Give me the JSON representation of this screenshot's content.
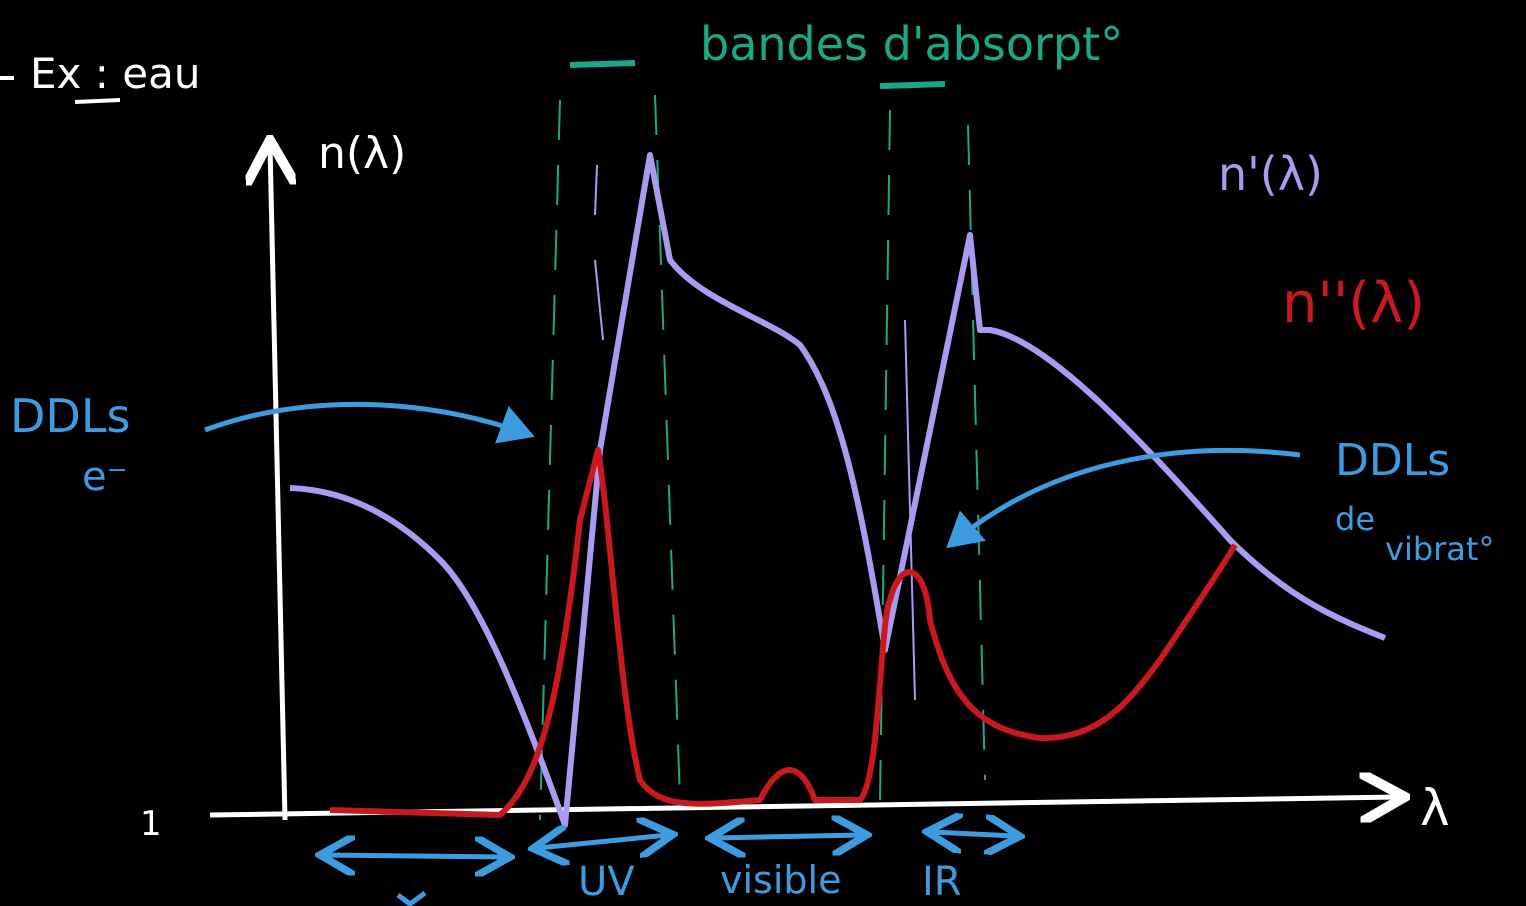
{
  "title": "Ex : eau",
  "bands_label": "bandes d'absorpt°",
  "axis": {
    "y_label": "n(λ)",
    "x_label": "λ",
    "origin_label": "1"
  },
  "legend": {
    "real": "n'(λ)",
    "imaginary": "n''(λ)"
  },
  "annotations": {
    "electronic": [
      "DDLs",
      "e⁻"
    ],
    "vibrational": [
      "DDLs",
      "de",
      "vibrat°"
    ]
  },
  "ranges": [
    "UV",
    "visible",
    "IR"
  ]
}
